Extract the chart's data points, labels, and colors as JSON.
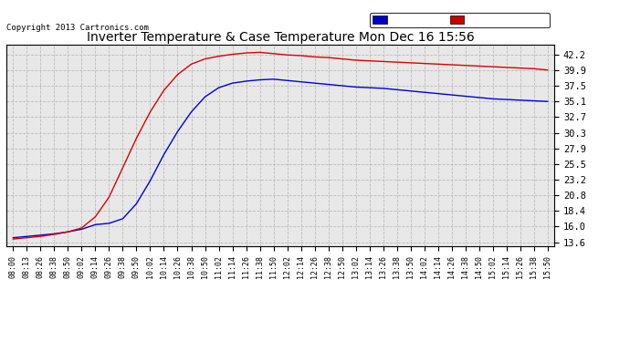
{
  "title": "Inverter Temperature & Case Temperature Mon Dec 16 15:56",
  "copyright": "Copyright 2013 Cartronics.com",
  "background_color": "#ffffff",
  "plot_bg_color": "#e8e8e8",
  "grid_color": "#bbbbbb",
  "yticks": [
    13.6,
    16.0,
    18.4,
    20.8,
    23.2,
    25.5,
    27.9,
    30.3,
    32.7,
    35.1,
    37.5,
    39.9,
    42.2
  ],
  "ylim": [
    13.0,
    43.8
  ],
  "case_color": "#0000dd",
  "inverter_color": "#dd0000",
  "legend_case_bg": "#0000cc",
  "legend_inverter_bg": "#cc0000",
  "xtick_labels": [
    "08:00",
    "08:13",
    "08:26",
    "08:38",
    "08:50",
    "09:02",
    "09:14",
    "09:26",
    "09:38",
    "09:50",
    "10:02",
    "10:14",
    "10:26",
    "10:38",
    "10:50",
    "11:02",
    "11:14",
    "11:26",
    "11:38",
    "11:50",
    "12:02",
    "12:14",
    "12:26",
    "12:38",
    "12:50",
    "13:02",
    "13:14",
    "13:26",
    "13:38",
    "13:50",
    "14:02",
    "14:14",
    "14:26",
    "14:38",
    "14:50",
    "15:02",
    "15:14",
    "15:26",
    "15:38",
    "15:50"
  ],
  "case_vals": [
    14.3,
    14.5,
    14.7,
    14.9,
    15.2,
    15.6,
    16.3,
    16.5,
    17.2,
    19.5,
    23.0,
    27.0,
    30.5,
    33.5,
    35.8,
    37.2,
    37.9,
    38.2,
    38.4,
    38.5,
    38.3,
    38.1,
    37.9,
    37.7,
    37.5,
    37.3,
    37.2,
    37.1,
    36.9,
    36.7,
    36.5,
    36.3,
    36.1,
    35.9,
    35.7,
    35.5,
    35.4,
    35.3,
    35.2,
    35.1
  ],
  "inv_vals": [
    14.1,
    14.3,
    14.5,
    14.8,
    15.2,
    15.8,
    17.5,
    20.5,
    25.0,
    29.5,
    33.5,
    36.8,
    39.2,
    40.8,
    41.6,
    42.0,
    42.3,
    42.5,
    42.6,
    42.4,
    42.2,
    42.1,
    41.9,
    41.8,
    41.6,
    41.4,
    41.3,
    41.2,
    41.1,
    41.0,
    40.9,
    40.8,
    40.7,
    40.6,
    40.5,
    40.4,
    40.3,
    40.2,
    40.1,
    39.9
  ]
}
